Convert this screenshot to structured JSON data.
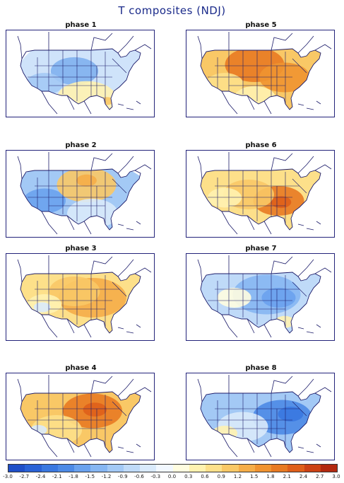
{
  "title": "T composites (NDJ)",
  "panels": [
    {
      "label": "phase 1",
      "scheme": "cool_west_south_warm"
    },
    {
      "label": "phase 5",
      "scheme": "warm_north"
    },
    {
      "label": "phase 2",
      "scheme": "cool_west_warm_north"
    },
    {
      "label": "phase 6",
      "scheme": "warm_east"
    },
    {
      "label": "phase 3",
      "scheme": "warm_east_mild"
    },
    {
      "label": "phase 7",
      "scheme": "cool_all"
    },
    {
      "label": "phase 4",
      "scheme": "warm_north_central"
    },
    {
      "label": "phase 8",
      "scheme": "cool_east"
    }
  ],
  "colorbar": {
    "labels": [
      "-3.0",
      "-2.7",
      "-2.4",
      "-2.1",
      "-1.8",
      "-1.5",
      "-1.2",
      "-0.9",
      "-0.6",
      "-0.3",
      "0.0",
      "0.3",
      "0.6",
      "0.9",
      "1.2",
      "1.5",
      "1.8",
      "2.1",
      "2.4",
      "2.7",
      "3.0"
    ],
    "colors": [
      "#1f4fc8",
      "#2a62d6",
      "#3a78e0",
      "#4d8ae6",
      "#6aa2ee",
      "#86b6f2",
      "#a3c9f5",
      "#bfdaf8",
      "#d9eafb",
      "#f2f8ff",
      "#fffde0",
      "#fff2b0",
      "#fde08a",
      "#f9c866",
      "#f5ad48",
      "#f09330",
      "#e87a22",
      "#df5f1a",
      "#cc4214",
      "#b3290f"
    ]
  }
}
